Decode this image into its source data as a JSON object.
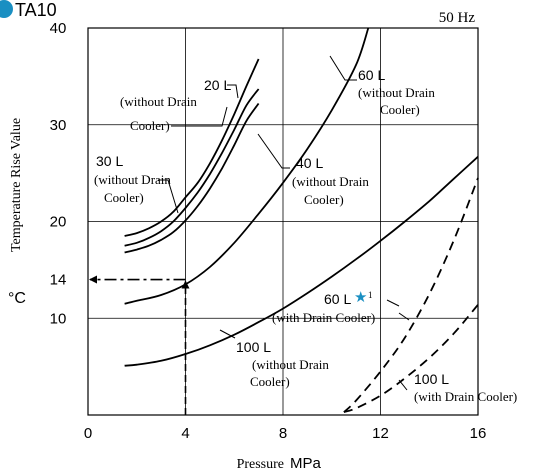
{
  "badge": {
    "text": "TA10",
    "color": "#1a8fc2"
  },
  "frequency_label": "50 Hz",
  "chart_data": {
    "type": "line",
    "xlabel_main": "Pressure",
    "xlabel_unit": "MPa",
    "ylabel_main": "Temperature Rise Value",
    "ylabel_unit": "°C",
    "xlim": [
      0,
      16
    ],
    "ylim": [
      0,
      40
    ],
    "x_ticks": [
      0,
      4,
      8,
      12,
      16
    ],
    "y_ticks": [
      10,
      14,
      20,
      30,
      40
    ],
    "grid": true,
    "series": [
      {
        "name": "30 L (without Drain Cooler)",
        "style": "solid",
        "x": [
          1.5,
          2,
          2.5,
          3,
          3.5,
          4,
          4.5,
          5,
          5.5,
          6,
          6.5,
          7
        ],
        "y": [
          18.5,
          18.8,
          19.3,
          20.0,
          21.0,
          22.5,
          24.0,
          26.0,
          28.4,
          31.1,
          34.0,
          36.8
        ]
      },
      {
        "name": "20 L (without Drain Cooler)",
        "style": "solid",
        "x": [
          1.5,
          2,
          2.5,
          3,
          3.5,
          4,
          4.5,
          5,
          5.5,
          6,
          6.5,
          7
        ],
        "y": [
          17.5,
          17.8,
          18.3,
          19.0,
          20.0,
          21.4,
          23.0,
          24.9,
          27.1,
          29.5,
          32.0,
          33.7
        ]
      },
      {
        "name": "20 L (without Drain Cooler) lower",
        "style": "solid",
        "x": [
          1.5,
          2,
          2.5,
          3,
          3.5,
          4,
          4.5,
          5,
          5.5,
          6,
          6.5,
          7
        ],
        "y": [
          16.8,
          17.1,
          17.5,
          18.1,
          18.9,
          20.1,
          21.6,
          23.4,
          25.5,
          27.9,
          30.4,
          32.2
        ]
      },
      {
        "name": "40 L (without Drain Cooler)",
        "style": "solid",
        "x": [
          1.5,
          2,
          3,
          4,
          5,
          6,
          7,
          8,
          9,
          10,
          11,
          11.5
        ],
        "y": [
          11.5,
          11.8,
          12.4,
          13.5,
          15.3,
          17.8,
          20.8,
          24.0,
          27.5,
          31.5,
          36.2,
          40
        ]
      },
      {
        "name": "100 L (without Drain Cooler)",
        "style": "solid",
        "x": [
          1.5,
          2,
          3,
          4,
          5,
          6,
          7,
          8,
          9,
          10,
          11,
          12,
          13,
          14,
          15,
          16
        ],
        "y": [
          5.1,
          5.2,
          5.6,
          6.3,
          7.2,
          8.3,
          9.6,
          11.0,
          12.6,
          14.3,
          16.1,
          18.0,
          20.0,
          22.1,
          24.4,
          26.7
        ]
      },
      {
        "name": "60 L (with Drain Cooler)",
        "style": "dashed",
        "x": [
          10.5,
          11,
          12,
          13,
          14,
          15,
          16
        ],
        "y": [
          0.3,
          1.5,
          4.5,
          8.0,
          12.5,
          18.0,
          24.5
        ]
      },
      {
        "name": "100 L (with Drain Cooler)",
        "style": "dashed",
        "x": [
          10.5,
          11,
          12,
          13,
          14,
          15,
          16
        ],
        "y": [
          0.3,
          0.7,
          2.0,
          3.8,
          5.9,
          8.4,
          11.4
        ]
      }
    ],
    "reference_point": {
      "x": 4,
      "y": 14
    },
    "annotations": [
      {
        "line1": "20 L",
        "line2": "(without Drain",
        "line3": "Cooler)"
      },
      {
        "line1": "30 L",
        "line2": "(without Drain",
        "line3": "Cooler)"
      },
      {
        "line1": "40 L",
        "line2": "(without Drain",
        "line3": "Cooler)"
      },
      {
        "line1": "60 L",
        "line2": "(without Drain",
        "line3": "Cooler)"
      },
      {
        "line1": "60 L",
        "line2": "(with Drain Cooler)",
        "star": "★",
        "footnote": "1",
        "star_color": "#1a8fc2"
      },
      {
        "line1": "100 L",
        "line2": "(without Drain",
        "line3": "Cooler)"
      },
      {
        "line1": "100 L",
        "line2": "(with Drain Cooler)"
      }
    ]
  }
}
